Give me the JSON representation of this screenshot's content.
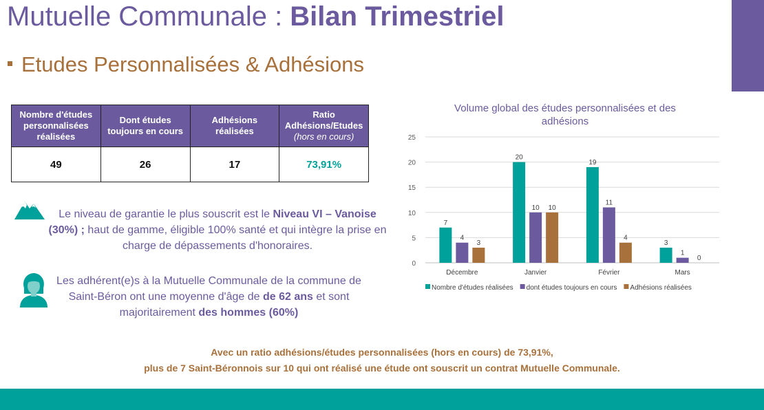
{
  "header": {
    "title_prefix": "Mutuelle Communale : ",
    "title_bold": "Bilan Trimestriel",
    "subtitle": "Etudes Personnalisées & Adhésions"
  },
  "colors": {
    "purple": "#6b5b9e",
    "brown": "#a8703a",
    "teal": "#00a19a"
  },
  "kpi_table": {
    "headers": [
      {
        "line1": "Nombre d'études",
        "line2": "personnalisées",
        "line3": "réalisées"
      },
      {
        "line1": "Dont études",
        "line2": "toujours en cours"
      },
      {
        "line1": "Adhésions",
        "line2": "réalisées"
      },
      {
        "line1": "Ratio",
        "line2": "Adhésions/Etudes",
        "note": "(hors en cours)"
      }
    ],
    "values": [
      "49",
      "26",
      "17",
      "73,91%"
    ]
  },
  "info_guarantee": {
    "icon": "mountain-icon",
    "t1": "Le niveau de garantie le plus souscrit est le ",
    "b1": "Niveau VI – Vanoise (30%) ;",
    "t2": " haut de gamme, éligible 100% santé et qui intègre la prise en charge de dépassements d'honoraires."
  },
  "info_members": {
    "icon": "person-icon",
    "t1": "Les adhérent(e)s à la Mutuelle Communale de la commune de Saint-Béron ont une moyenne d'âge de ",
    "b1": "de 62 ans",
    "t2": " et sont majoritairement ",
    "b2": "des hommes (60%)"
  },
  "conclusion": {
    "line1": "Avec un ratio adhésions/études personnalisées (hors en cours) de 73,91%,",
    "line2": "plus de 7 Saint-Béronnois sur 10 qui ont réalisé une étude ont souscrit un contrat Mutuelle Communale."
  },
  "chart_data": {
    "type": "bar",
    "title": "Volume global des études personnalisées et des adhésions",
    "title_lines": [
      "Volume global des études personnalisées et des",
      "adhésions"
    ],
    "categories": [
      "Décembre",
      "Janvier",
      "Février",
      "Mars"
    ],
    "series": [
      {
        "name": "Nombre d'études réalisées",
        "color": "#00a19a",
        "values": [
          7,
          20,
          19,
          3
        ]
      },
      {
        "name": "dont études toujours en cours",
        "color": "#6b5b9e",
        "values": [
          4,
          10,
          11,
          1
        ]
      },
      {
        "name": "Adhésions réalisées",
        "color": "#a8703a",
        "values": [
          3,
          10,
          4,
          0
        ]
      }
    ],
    "ylim": [
      0,
      25
    ],
    "yticks": [
      0,
      5,
      10,
      15,
      20,
      25
    ],
    "grid": true,
    "data_labels": true,
    "legend": "bottom"
  }
}
